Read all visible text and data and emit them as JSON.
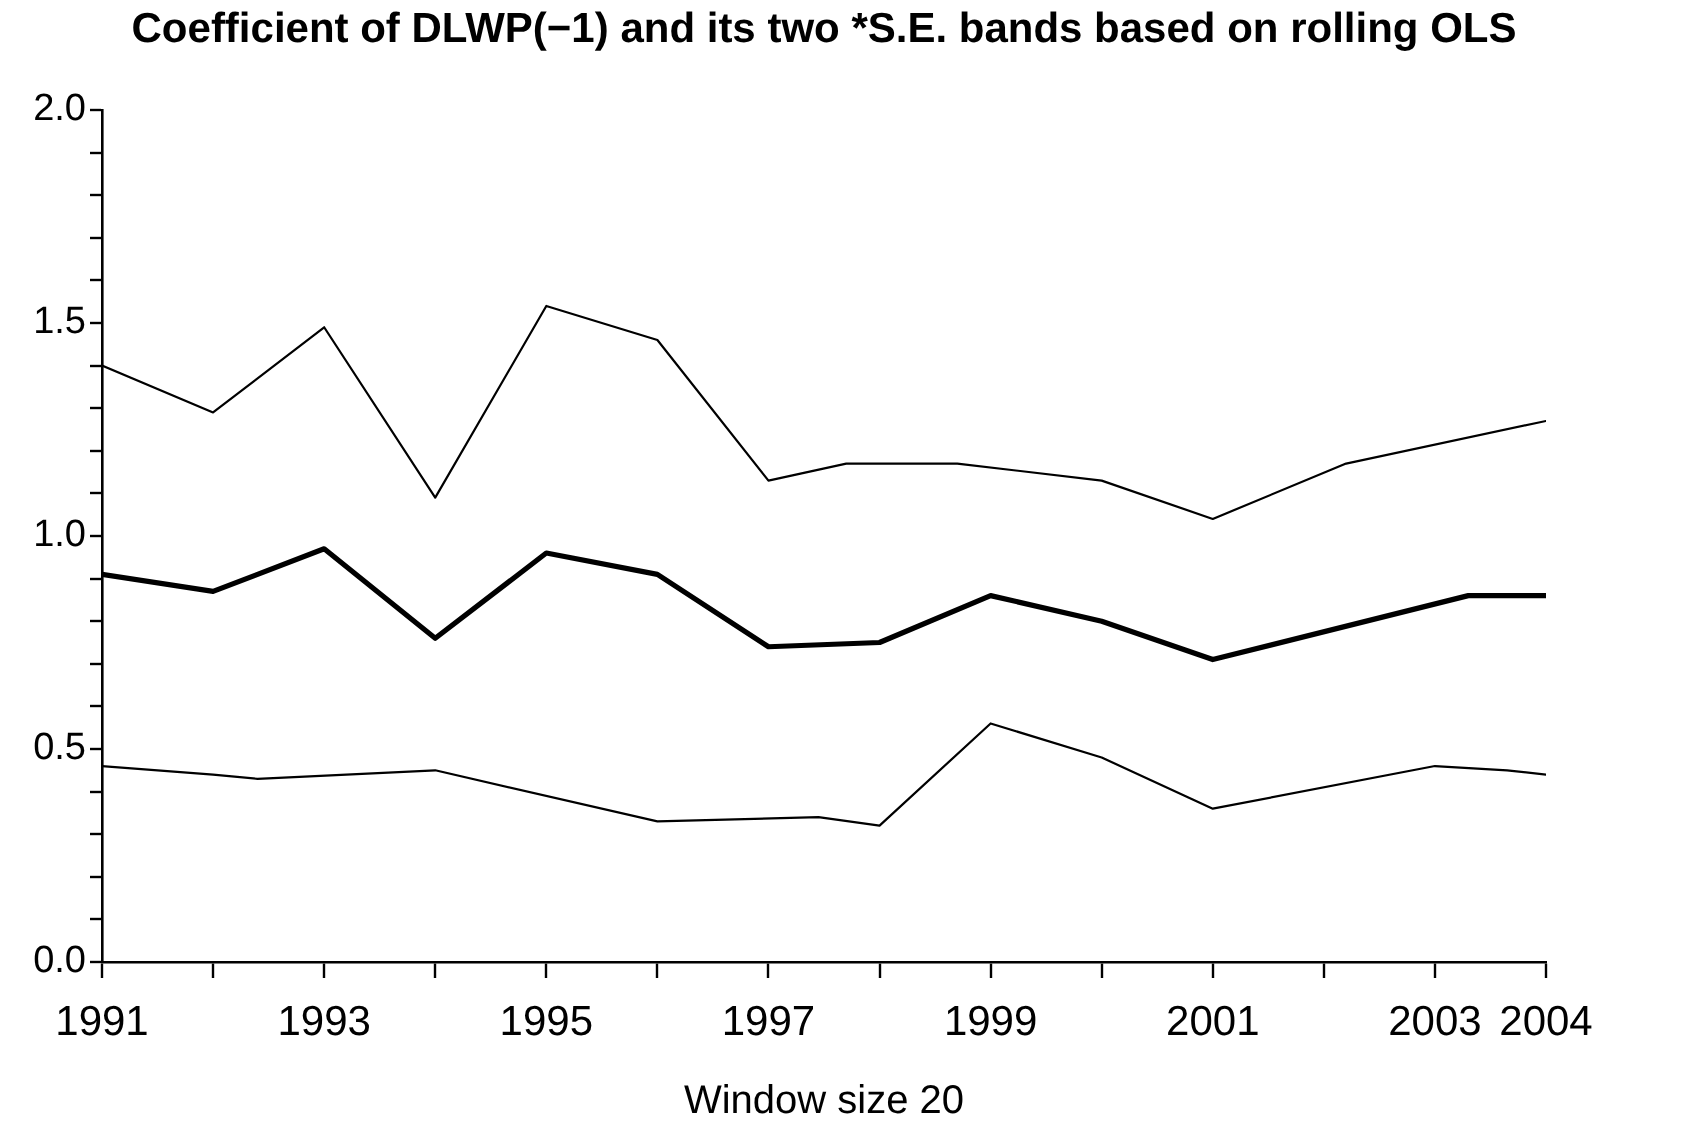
{
  "chart_data": {
    "type": "line",
    "title": "Coefficient of DLWP(−1) and its two *S.E. bands based on rolling OLS",
    "xlabel": "Window size 20",
    "series": [
      {
        "color": "#000000",
        "x": [
          1991,
          1992,
          1993,
          1994,
          1995,
          1996,
          1997,
          1998,
          1999,
          2000,
          2001,
          2003.3,
          2004
        ],
        "values": [
          0.91,
          0.87,
          0.97,
          0.76,
          0.96,
          0.91,
          0.74,
          0.75,
          0.86,
          0.8,
          0.71,
          0.86,
          0.86
        ]
      },
      {
        "color": "#000000",
        "x": [
          1991,
          1992,
          1993,
          1994,
          1995,
          1996,
          1997,
          1997.7,
          1998.7,
          2000,
          2001,
          2002.2,
          2004
        ],
        "values": [
          1.4,
          1.29,
          1.49,
          1.09,
          1.54,
          1.46,
          1.13,
          1.17,
          1.17,
          1.13,
          1.04,
          1.17,
          1.27
        ]
      },
      {
        "color": "#000000",
        "x": [
          1991,
          1992,
          1992.4,
          1994,
          1996,
          1997.45,
          1998,
          1999,
          2000,
          2001,
          2003,
          2003.65,
          2004
        ],
        "values": [
          0.46,
          0.44,
          0.43,
          0.45,
          0.33,
          0.34,
          0.32,
          0.56,
          0.48,
          0.36,
          0.46,
          0.45,
          0.44
        ]
      }
    ],
    "xlim": [
      1991,
      2004
    ],
    "xticks": [
      1991,
      {
        "value": 1992,
        "label": null
      },
      1993,
      {
        "value": 1994,
        "label": null
      },
      1995,
      {
        "value": 1996,
        "label": null
      },
      1997,
      {
        "value": 1998,
        "label": null
      },
      1999,
      {
        "value": 2000,
        "label": null
      },
      2001,
      {
        "value": 2002,
        "label": null
      },
      2003,
      2004
    ],
    "ylim": [
      0,
      2
    ],
    "yticks": [
      {
        "value": 0,
        "label": "0.0"
      },
      {
        "value": 0.1,
        "label": null
      },
      {
        "value": 0.2,
        "label": null
      },
      {
        "value": 0.3,
        "label": null
      },
      {
        "value": 0.4,
        "label": null
      },
      {
        "value": 0.5,
        "label": "0.5"
      },
      {
        "value": 0.6,
        "label": null
      },
      {
        "value": 0.7,
        "label": null
      },
      {
        "value": 0.8,
        "label": null
      },
      {
        "value": 0.9,
        "label": null
      },
      {
        "value": 1,
        "label": "1.0"
      },
      {
        "value": 1.1,
        "label": null
      },
      {
        "value": 1.2,
        "label": null
      },
      {
        "value": 1.3,
        "label": null
      },
      {
        "value": 1.4,
        "label": null
      },
      {
        "value": 1.5,
        "label": "1.5"
      },
      {
        "value": 1.6,
        "label": null
      },
      {
        "value": 1.7,
        "label": null
      },
      {
        "value": 1.8,
        "label": null
      },
      {
        "value": 1.9,
        "label": null
      },
      {
        "value": 2,
        "label": "2.0"
      }
    ]
  }
}
